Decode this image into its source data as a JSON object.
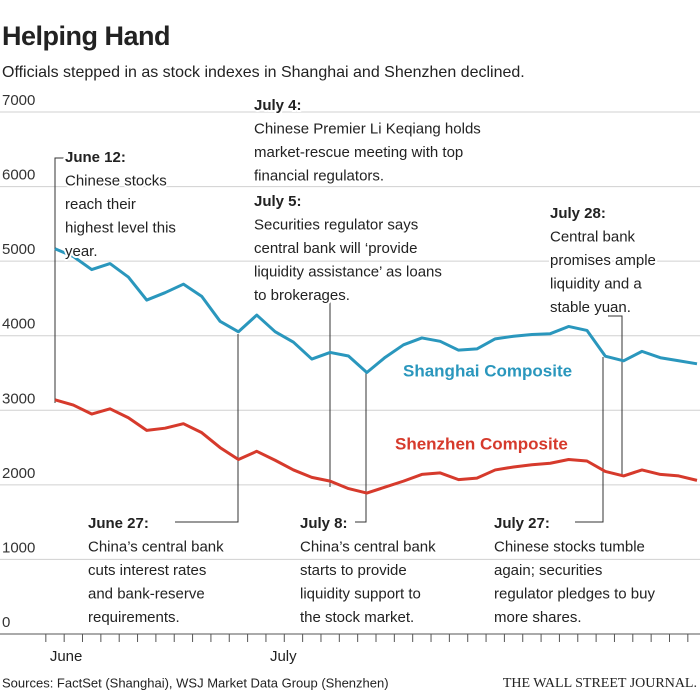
{
  "chart_data": {
    "type": "line",
    "title": "Helping Hand",
    "subtitle": "Officials stepped in as stock indexes in Shanghai and Shenzhen declined.",
    "categories": [
      "June",
      null,
      null,
      null,
      null,
      null,
      null,
      null,
      null,
      null,
      null,
      null,
      "July",
      null,
      null,
      null,
      null,
      null,
      null,
      null,
      null,
      null,
      null,
      null,
      null,
      null,
      null,
      null,
      null,
      null,
      null,
      null,
      null,
      null,
      null,
      null
    ],
    "series": [
      {
        "name": "Shanghai Composite",
        "color": "#2a97bd",
        "values": [
          5166,
          5062,
          4887,
          4967,
          4786,
          4478,
          4577,
          4691,
          4528,
          4193,
          4053,
          4277,
          4054,
          3913,
          3687,
          3776,
          3728,
          3507,
          3710,
          3878,
          3970,
          3925,
          3806,
          3823,
          3958,
          3993,
          4017,
          4027,
          4124,
          4071,
          3726,
          3663,
          3790,
          3705,
          3664,
          3623
        ]
      },
      {
        "name": "Shenzhen Composite",
        "color": "#d63a2c",
        "values": [
          3141,
          3070,
          2950,
          3020,
          2900,
          2730,
          2760,
          2820,
          2700,
          2500,
          2340,
          2450,
          2330,
          2200,
          2100,
          2050,
          1950,
          1890,
          1970,
          2050,
          2140,
          2160,
          2070,
          2090,
          2200,
          2240,
          2270,
          2290,
          2340,
          2320,
          2180,
          2120,
          2200,
          2140,
          2120,
          2060
        ]
      }
    ],
    "ylim": [
      0,
      7000
    ],
    "yticks": [
      0,
      1000,
      2000,
      3000,
      4000,
      5000,
      6000,
      7000
    ],
    "grid": true,
    "annotations": [
      {
        "title": "June 12:",
        "lines": [
          "Chinese stocks",
          "reach their",
          "highest level this",
          "year."
        ]
      },
      {
        "title": "July 4:",
        "lines": [
          "Chinese Premier Li Keqiang holds",
          "market-rescue meeting with top",
          "financial regulators."
        ]
      },
      {
        "title": "July 5:",
        "lines": [
          "Securities regulator says",
          "central bank will ‘provide",
          "liquidity assistance’ as loans",
          "to brokerages."
        ]
      },
      {
        "title": "July 28:",
        "lines": [
          "Central bank",
          "promises ample",
          "liquidity and a",
          "stable yuan."
        ]
      },
      {
        "title": "June 27:",
        "lines": [
          "China’s central bank",
          "cuts interest rates",
          "and bank-reserve",
          "requirements."
        ]
      },
      {
        "title": "July 8:",
        "lines": [
          "China’s central bank",
          "starts to provide",
          "liquidity support to",
          "the stock market."
        ]
      },
      {
        "title": "July 27:",
        "lines": [
          "Chinese stocks tumble",
          "again; securities",
          "regulator pledges to buy",
          "more shares."
        ]
      }
    ],
    "source": "Sources: FactSet (Shanghai), WSJ Market Data Group (Shenzhen)",
    "credit": "THE WALL STREET JOURNAL."
  }
}
